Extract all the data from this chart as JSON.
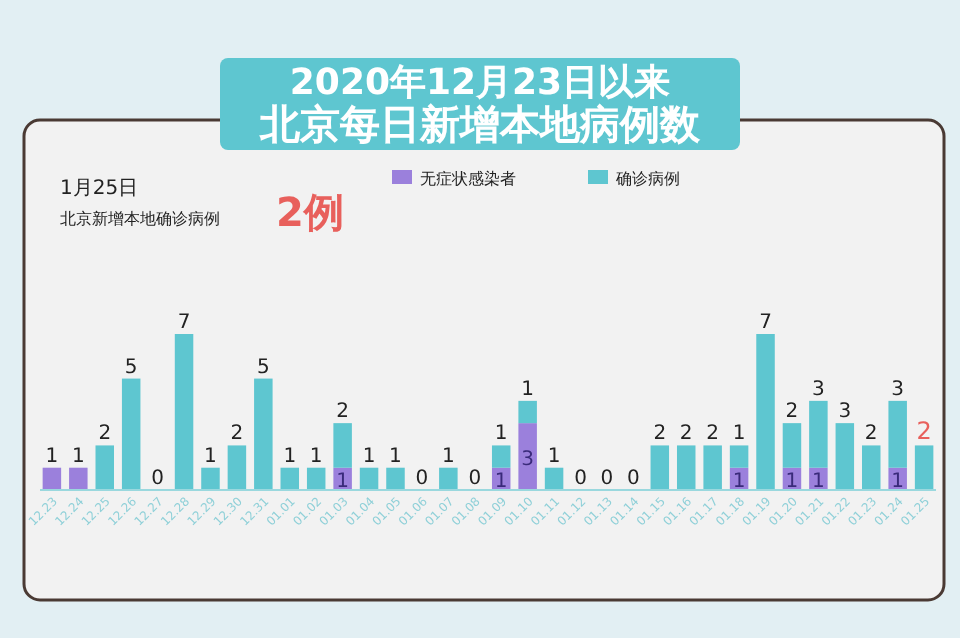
{
  "chart_data": {
    "type": "bar",
    "title": "北京每日新增本地病例数",
    "subtitle": "2020年12月23日以来",
    "annotations": [
      "1月25日",
      "北京新增本地确诊病例",
      "2例"
    ],
    "stacked": true,
    "legend": "top right",
    "categories": [
      "12.23",
      "12.24",
      "12.25",
      "12.26",
      "12.27",
      "12.28",
      "12.29",
      "12.30",
      "12.31",
      "01.01",
      "01.02",
      "01.03",
      "01.04",
      "01.05",
      "01.06",
      "01.07",
      "01.08",
      "01.09",
      "01.10",
      "01.11",
      "01.12",
      "01.13",
      "01.14",
      "01.15",
      "01.16",
      "01.17",
      "01.18",
      "01.19",
      "01.20",
      "01.21",
      "01.22",
      "01.23",
      "01.24",
      "01.25"
    ],
    "series": [
      {
        "name": "无症状感染者",
        "color": "#9b80dc",
        "values": [
          1,
          1,
          0,
          0,
          0,
          0,
          0,
          0,
          0,
          0,
          0,
          1,
          0,
          0,
          0,
          0,
          0,
          1,
          3,
          0,
          0,
          0,
          0,
          0,
          0,
          0,
          1,
          0,
          1,
          1,
          0,
          0,
          1,
          0
        ],
        "value_labels": [
          "1",
          "1",
          null,
          null,
          null,
          null,
          null,
          null,
          null,
          null,
          null,
          "1",
          null,
          null,
          null,
          null,
          null,
          "1",
          "3",
          null,
          null,
          null,
          null,
          null,
          null,
          null,
          "1",
          null,
          "1",
          "1",
          null,
          null,
          "1",
          null
        ]
      },
      {
        "name": "确诊病例",
        "color": "#5ec6d0",
        "values": [
          0,
          0,
          2,
          5,
          0,
          7,
          1,
          2,
          5,
          1,
          1,
          2,
          1,
          1,
          0,
          1,
          0,
          1,
          1,
          1,
          0,
          0,
          0,
          2,
          2,
          2,
          1,
          7,
          2,
          3,
          3,
          2,
          3,
          2
        ],
        "value_labels": [
          null,
          null,
          "2",
          "5",
          "0",
          "7",
          "1",
          "2",
          "5",
          "1",
          "1",
          "2",
          "1",
          "1",
          "0",
          "1",
          "0",
          "1",
          "1",
          "1",
          "0",
          "0",
          "0",
          "2",
          "2",
          "2",
          "1",
          "7",
          "2",
          "3",
          "3",
          "2",
          "3",
          "2"
        ]
      }
    ]
  }
}
